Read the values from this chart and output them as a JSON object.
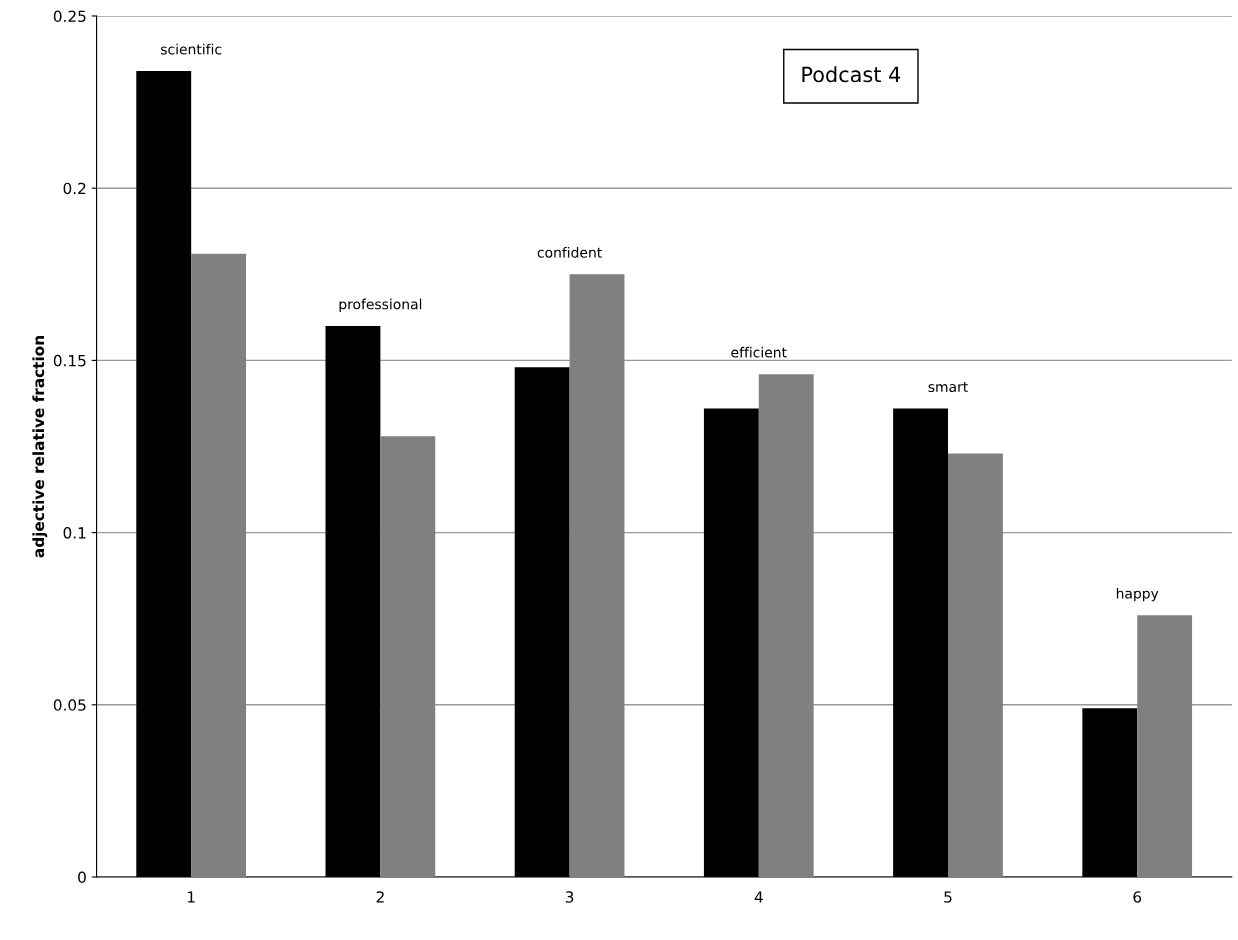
{
  "chart_data": {
    "type": "bar",
    "ylabel": "adjective relative fraction",
    "categories": [
      "1",
      "2",
      "3",
      "4",
      "5",
      "6"
    ],
    "series": [
      {
        "color": "#000000",
        "values": [
          0.234,
          0.16,
          0.148,
          0.136,
          0.136,
          0.049
        ]
      },
      {
        "color": "#808080",
        "values": [
          0.181,
          0.128,
          0.175,
          0.146,
          0.123,
          0.076
        ]
      }
    ],
    "ylim": [
      0,
      0.25
    ],
    "yticks": [
      0,
      0.05,
      0.1,
      0.15,
      0.2,
      0.25
    ],
    "grid": "y",
    "legend": false,
    "annotations": [
      "scientific",
      "professional",
      "confident",
      "efficient",
      "smart",
      "happy",
      "Podcast 4"
    ]
  }
}
